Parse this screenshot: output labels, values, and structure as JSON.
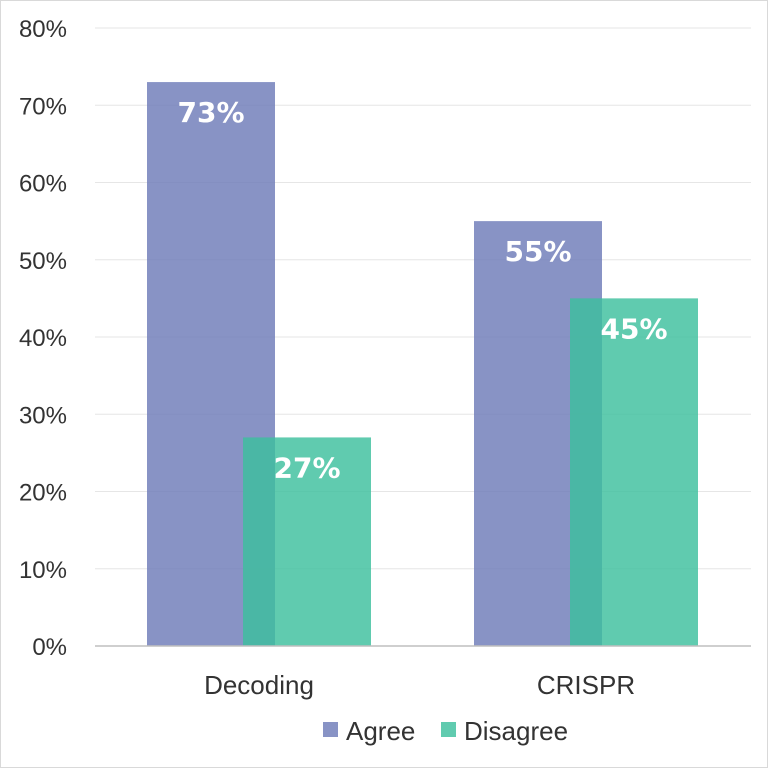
{
  "chart_data": {
    "type": "bar",
    "categories": [
      "Decoding",
      "CRISPR"
    ],
    "series": [
      {
        "name": "Agree",
        "values": [
          73,
          55
        ],
        "color": "#6e7bb8",
        "labels": [
          "73%",
          "55%"
        ]
      },
      {
        "name": "Disagree",
        "values": [
          27,
          45
        ],
        "color": "#3dbf9e",
        "labels": [
          "27%",
          "45%"
        ]
      }
    ],
    "ylim": [
      0,
      80
    ],
    "yticks": [
      0,
      10,
      20,
      30,
      40,
      50,
      60,
      70,
      80
    ],
    "ytick_labels": [
      "0%",
      "10%",
      "20%",
      "30%",
      "40%",
      "50%",
      "60%",
      "70%",
      "80%"
    ],
    "grid": true,
    "legend_position": "bottom",
    "gridline_color": "#e6e6e6",
    "axis_color": "#bfbfbf"
  }
}
